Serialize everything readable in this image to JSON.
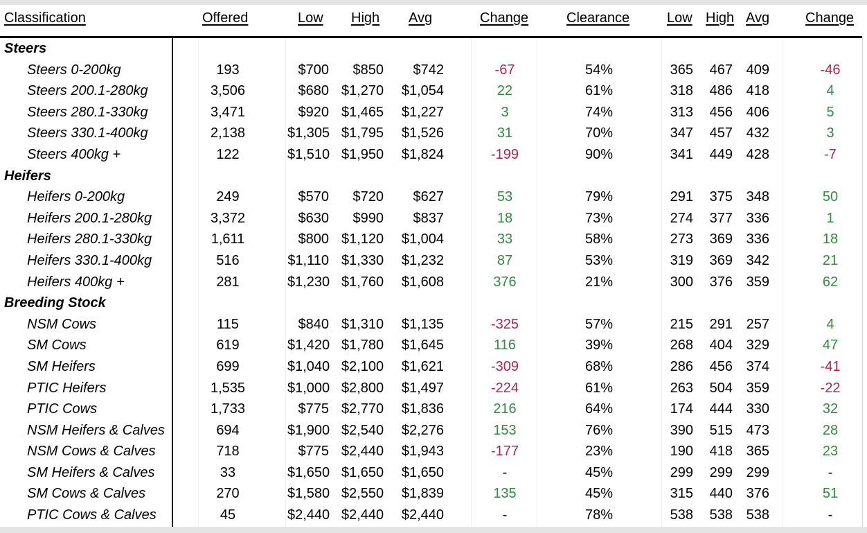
{
  "headers": {
    "classification": "Classification",
    "offered": "Offered",
    "low": "Low",
    "high": "High",
    "avg": "Avg",
    "change": "Change",
    "clearance": "Clearance",
    "low_ckg": "Low",
    "high_ckg": "High",
    "avg_ckg": "Avg",
    "change_ckg": "Change"
  },
  "colors": {
    "positive": "#2e8b3e",
    "negative": "#b0254d"
  },
  "rows": [
    {
      "type": "section",
      "label": "Steers"
    },
    {
      "type": "data",
      "label": "Steers 0-200kg",
      "offered": "193",
      "low": "$700",
      "high": "$850",
      "avg": "$742",
      "change": "-67",
      "clearance": "54%",
      "low_ckg": "365",
      "high_ckg": "467",
      "avg_ckg": "409",
      "change_ckg": "-46"
    },
    {
      "type": "data",
      "label": "Steers 200.1-280kg",
      "offered": "3,506",
      "low": "$680",
      "high": "$1,270",
      "avg": "$1,054",
      "change": "22",
      "clearance": "61%",
      "low_ckg": "318",
      "high_ckg": "486",
      "avg_ckg": "418",
      "change_ckg": "4"
    },
    {
      "type": "data",
      "label": "Steers 280.1-330kg",
      "offered": "3,471",
      "low": "$920",
      "high": "$1,465",
      "avg": "$1,227",
      "change": "3",
      "clearance": "74%",
      "low_ckg": "313",
      "high_ckg": "456",
      "avg_ckg": "406",
      "change_ckg": "5"
    },
    {
      "type": "data",
      "label": "Steers 330.1-400kg",
      "offered": "2,138",
      "low": "$1,305",
      "high": "$1,795",
      "avg": "$1,526",
      "change": "31",
      "clearance": "70%",
      "low_ckg": "347",
      "high_ckg": "457",
      "avg_ckg": "432",
      "change_ckg": "3"
    },
    {
      "type": "data",
      "label": "Steers 400kg +",
      "offered": "122",
      "low": "$1,510",
      "high": "$1,950",
      "avg": "$1,824",
      "change": "-199",
      "clearance": "90%",
      "low_ckg": "341",
      "high_ckg": "449",
      "avg_ckg": "428",
      "change_ckg": "-7"
    },
    {
      "type": "section",
      "label": "Heifers"
    },
    {
      "type": "data",
      "label": "Heifers 0-200kg",
      "offered": "249",
      "low": "$570",
      "high": "$720",
      "avg": "$627",
      "change": "53",
      "clearance": "79%",
      "low_ckg": "291",
      "high_ckg": "375",
      "avg_ckg": "348",
      "change_ckg": "50"
    },
    {
      "type": "data",
      "label": "Heifers 200.1-280kg",
      "offered": "3,372",
      "low": "$630",
      "high": "$990",
      "avg": "$837",
      "change": "18",
      "clearance": "73%",
      "low_ckg": "274",
      "high_ckg": "377",
      "avg_ckg": "336",
      "change_ckg": "1"
    },
    {
      "type": "data",
      "label": "Heifers 280.1-330kg",
      "offered": "1,611",
      "low": "$800",
      "high": "$1,120",
      "avg": "$1,004",
      "change": "33",
      "clearance": "58%",
      "low_ckg": "273",
      "high_ckg": "369",
      "avg_ckg": "336",
      "change_ckg": "18"
    },
    {
      "type": "data",
      "label": "Heifers 330.1-400kg",
      "offered": "516",
      "low": "$1,110",
      "high": "$1,330",
      "avg": "$1,232",
      "change": "87",
      "clearance": "53%",
      "low_ckg": "319",
      "high_ckg": "369",
      "avg_ckg": "342",
      "change_ckg": "21"
    },
    {
      "type": "data",
      "label": "Heifers 400kg +",
      "offered": "281",
      "low": "$1,230",
      "high": "$1,760",
      "avg": "$1,608",
      "change": "376",
      "clearance": "21%",
      "low_ckg": "300",
      "high_ckg": "376",
      "avg_ckg": "359",
      "change_ckg": "62"
    },
    {
      "type": "section",
      "label": "Breeding Stock"
    },
    {
      "type": "data",
      "label": "NSM Cows",
      "offered": "115",
      "low": "$840",
      "high": "$1,310",
      "avg": "$1,135",
      "change": "-325",
      "clearance": "57%",
      "low_ckg": "215",
      "high_ckg": "291",
      "avg_ckg": "257",
      "change_ckg": "4"
    },
    {
      "type": "data",
      "label": "SM Cows",
      "offered": "619",
      "low": "$1,420",
      "high": "$1,780",
      "avg": "$1,645",
      "change": "116",
      "clearance": "39%",
      "low_ckg": "268",
      "high_ckg": "404",
      "avg_ckg": "329",
      "change_ckg": "47"
    },
    {
      "type": "data",
      "label": "SM Heifers",
      "offered": "699",
      "low": "$1,040",
      "high": "$2,100",
      "avg": "$1,621",
      "change": "-309",
      "clearance": "68%",
      "low_ckg": "286",
      "high_ckg": "456",
      "avg_ckg": "374",
      "change_ckg": "-41"
    },
    {
      "type": "data",
      "label": "PTIC Heifers",
      "offered": "1,535",
      "low": "$1,000",
      "high": "$2,800",
      "avg": "$1,497",
      "change": "-224",
      "clearance": "61%",
      "low_ckg": "263",
      "high_ckg": "504",
      "avg_ckg": "359",
      "change_ckg": "-22"
    },
    {
      "type": "data",
      "label": "PTIC Cows",
      "offered": "1,733",
      "low": "$775",
      "high": "$2,770",
      "avg": "$1,836",
      "change": "216",
      "clearance": "64%",
      "low_ckg": "174",
      "high_ckg": "444",
      "avg_ckg": "330",
      "change_ckg": "32"
    },
    {
      "type": "data",
      "label": "NSM Heifers & Calves",
      "offered": "694",
      "low": "$1,900",
      "high": "$2,540",
      "avg": "$2,276",
      "change": "153",
      "clearance": "76%",
      "low_ckg": "390",
      "high_ckg": "515",
      "avg_ckg": "473",
      "change_ckg": "28"
    },
    {
      "type": "data",
      "label": "NSM Cows & Calves",
      "offered": "718",
      "low": "$775",
      "high": "$2,440",
      "avg": "$1,943",
      "change": "-177",
      "clearance": "23%",
      "low_ckg": "190",
      "high_ckg": "418",
      "avg_ckg": "365",
      "change_ckg": "23"
    },
    {
      "type": "data",
      "label": "SM Heifers & Calves",
      "offered": "33",
      "low": "$1,650",
      "high": "$1,650",
      "avg": "$1,650",
      "change": "-",
      "clearance": "45%",
      "low_ckg": "299",
      "high_ckg": "299",
      "avg_ckg": "299",
      "change_ckg": "-"
    },
    {
      "type": "data",
      "label": "SM Cows & Calves",
      "offered": "270",
      "low": "$1,580",
      "high": "$2,550",
      "avg": "$1,839",
      "change": "135",
      "clearance": "45%",
      "low_ckg": "315",
      "high_ckg": "440",
      "avg_ckg": "376",
      "change_ckg": "51"
    },
    {
      "type": "data",
      "label": "PTIC Cows & Calves",
      "offered": "45",
      "low": "$2,440",
      "high": "$2,440",
      "avg": "$2,440",
      "change": "-",
      "clearance": "78%",
      "low_ckg": "538",
      "high_ckg": "538",
      "avg_ckg": "538",
      "change_ckg": "-"
    }
  ]
}
